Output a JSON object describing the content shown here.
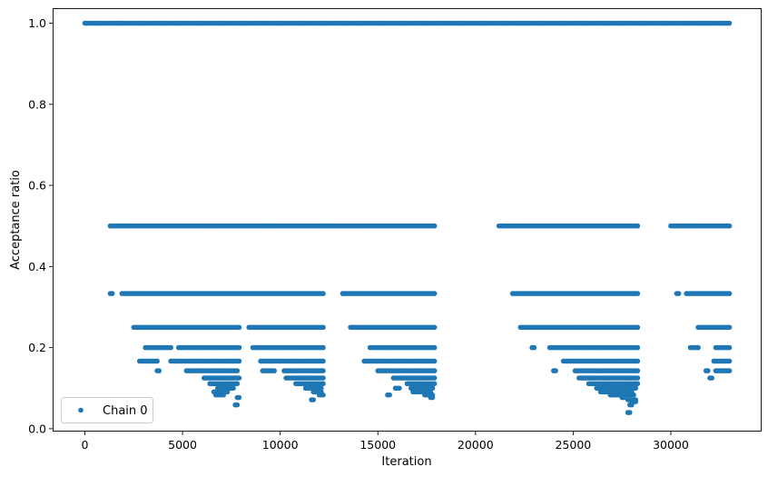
{
  "chart_data": {
    "type": "scatter",
    "title": "",
    "xlabel": "Iteration",
    "ylabel": "Acceptance ratio",
    "xlim": [
      -1650,
      34650
    ],
    "ylim": [
      -0.007,
      1.037
    ],
    "x_ticks": [
      0,
      5000,
      10000,
      15000,
      20000,
      25000,
      30000
    ],
    "x_tick_labels": [
      "0",
      "5000",
      "10000",
      "15000",
      "20000",
      "25000",
      "30000"
    ],
    "y_ticks": [
      0.0,
      0.2,
      0.4,
      0.6,
      0.8,
      1.0
    ],
    "y_tick_labels": [
      "0.0",
      "0.2",
      "0.4",
      "0.6",
      "0.8",
      "1.0"
    ],
    "grid": false,
    "legend": {
      "position": "lower-left",
      "entries": [
        "Chain 0"
      ]
    },
    "colors": {
      "series": "#1f77b4"
    },
    "series": [
      {
        "name": "Chain 0",
        "marker": "dot",
        "levels": [
          {
            "y": 1.0,
            "ranges": [
              [
                0,
                33000
              ]
            ]
          },
          {
            "y": 0.5,
            "ranges": [
              [
                1300,
                12200
              ],
              [
                12200,
                17900
              ],
              [
                21200,
                28300
              ],
              [
                30000,
                33000
              ]
            ]
          },
          {
            "y": 0.3333,
            "ranges": [
              [
                1300,
                1400
              ],
              [
                1900,
                12200
              ],
              [
                13200,
                17900
              ],
              [
                21900,
                28300
              ],
              [
                30300,
                30400
              ],
              [
                30800,
                33000
              ]
            ]
          },
          {
            "y": 0.25,
            "ranges": [
              [
                2500,
                7900
              ],
              [
                8400,
                12200
              ],
              [
                13600,
                17900
              ],
              [
                22300,
                28300
              ],
              [
                31400,
                33000
              ]
            ]
          },
          {
            "y": 0.2,
            "ranges": [
              [
                3100,
                4400
              ],
              [
                4800,
                7900
              ],
              [
                8600,
                12200
              ],
              [
                14600,
                17900
              ],
              [
                22900,
                23000
              ],
              [
                23800,
                28300
              ],
              [
                31000,
                31400
              ],
              [
                32300,
                33000
              ]
            ]
          },
          {
            "y": 0.1667,
            "ranges": [
              [
                2800,
                3700
              ],
              [
                4400,
                7900
              ],
              [
                9000,
                12200
              ],
              [
                14300,
                17900
              ],
              [
                24500,
                28300
              ],
              [
                32200,
                33000
              ]
            ]
          },
          {
            "y": 0.1429,
            "ranges": [
              [
                3700,
                3800
              ],
              [
                5200,
                7800
              ],
              [
                9100,
                9700
              ],
              [
                10200,
                12200
              ],
              [
                15000,
                17900
              ],
              [
                24000,
                24100
              ],
              [
                25100,
                28300
              ],
              [
                31800,
                31900
              ],
              [
                32300,
                33000
              ]
            ]
          },
          {
            "y": 0.125,
            "ranges": [
              [
                6100,
                7900
              ],
              [
                10300,
                12200
              ],
              [
                15800,
                17900
              ],
              [
                25300,
                28300
              ],
              [
                32000,
                32100
              ]
            ]
          },
          {
            "y": 0.1111,
            "ranges": [
              [
                6400,
                7800
              ],
              [
                10800,
                12200
              ],
              [
                16500,
                17900
              ],
              [
                25800,
                28300
              ]
            ]
          },
          {
            "y": 0.1,
            "ranges": [
              [
                6800,
                7600
              ],
              [
                11300,
                12100
              ],
              [
                15900,
                16100
              ],
              [
                16700,
                17800
              ],
              [
                26200,
                28200
              ]
            ]
          },
          {
            "y": 0.0909,
            "ranges": [
              [
                6600,
                7300
              ],
              [
                11700,
                12100
              ],
              [
                16800,
                17700
              ],
              [
                26400,
                28000
              ]
            ]
          },
          {
            "y": 0.0833,
            "ranges": [
              [
                6700,
                7100
              ],
              [
                12000,
                12200
              ],
              [
                15500,
                15600
              ],
              [
                17400,
                17800
              ],
              [
                26900,
                28100
              ]
            ]
          },
          {
            "y": 0.0769,
            "ranges": [
              [
                7800,
                7900
              ],
              [
                17700,
                17800
              ],
              [
                27500,
                27600
              ]
            ]
          },
          {
            "y": 0.0714,
            "ranges": [
              [
                11600,
                11700
              ],
              [
                27800,
                28200
              ]
            ]
          },
          {
            "y": 0.0667,
            "ranges": [
              [
                28000,
                28200
              ]
            ]
          },
          {
            "y": 0.0588,
            "ranges": [
              [
                7700,
                7800
              ],
              [
                27900,
                28000
              ]
            ]
          },
          {
            "y": 0.04,
            "ranges": [
              [
                27800,
                27900
              ]
            ]
          }
        ]
      }
    ]
  }
}
